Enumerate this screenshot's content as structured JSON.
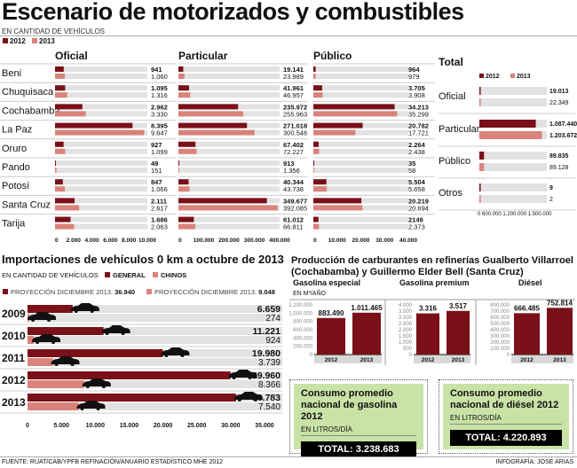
{
  "title": "Escenario de motorizados y combustibles",
  "subtitle": "EN CANTIDAD DE VEHÍCULOS",
  "legend": [
    "2012",
    "2013"
  ],
  "colors": {
    "y2012": "#7a1018",
    "y2013": "#d9837b",
    "track": "#e2e2e2",
    "green": "#c9e2a6"
  },
  "chart_data": [
    {
      "type": "bar",
      "title": "Oficial",
      "categories": [
        "Beni",
        "Chuquisaca",
        "Cochabamba",
        "La Paz",
        "Oruro",
        "Pando",
        "Potosí",
        "Santa Cruz",
        "Tarija"
      ],
      "series": [
        {
          "name": "2012",
          "values": [
            941,
            1095,
            2962,
            8395,
            927,
            49,
            847,
            2111,
            1686
          ],
          "labels": [
            "941",
            "1.095",
            "2.962",
            "8.395",
            "927",
            "49",
            "847",
            "2.111",
            "1.686"
          ]
        },
        {
          "name": "2013",
          "values": [
            1060,
            1316,
            3330,
            9647,
            1099,
            151,
            1066,
            2617,
            2063
          ],
          "labels": [
            "1.060",
            "1.316",
            "3.330",
            "9.647",
            "1.099",
            "151",
            "1.066",
            "2.617",
            "2.063"
          ]
        }
      ],
      "xlim": [
        0,
        10000
      ],
      "ticks": [
        "0",
        "2.000",
        "4.000",
        "6.000",
        "8.000",
        "10.000"
      ],
      "tickvals": [
        0,
        2000,
        4000,
        6000,
        8000,
        10000
      ]
    },
    {
      "type": "bar",
      "title": "Particular",
      "series": [
        {
          "name": "2012",
          "values": [
            19141,
            41961,
            235972,
            271018,
            67402,
            913,
            40344,
            349677,
            61012
          ],
          "labels": [
            "19.141",
            "41.961",
            "235.972",
            "271.018",
            "67.402",
            "913",
            "40.344",
            "349.677",
            "61.012"
          ]
        },
        {
          "name": "2013",
          "values": [
            23989,
            46957,
            255963,
            300546,
            72227,
            1356,
            43738,
            392085,
            66811
          ],
          "labels": [
            "23.989",
            "46.957",
            "255.963",
            "300.546",
            "72.227",
            "1.356",
            "43.738",
            "392.085",
            "66.811"
          ]
        }
      ],
      "xlim": [
        0,
        400000
      ],
      "ticks": [
        "0",
        "100.000",
        "200.000",
        "300.000",
        "400.000"
      ],
      "tickvals": [
        0,
        100000,
        200000,
        300000,
        400000
      ]
    },
    {
      "type": "bar",
      "title": "Público",
      "series": [
        {
          "name": "2012",
          "values": [
            964,
            3705,
            34213,
            20782,
            2264,
            35,
            5504,
            20219,
            2149
          ],
          "labels": [
            "964",
            "3.705",
            "34.213",
            "20.782",
            "2.264",
            "35",
            "5.504",
            "20.219",
            "2149"
          ]
        },
        {
          "name": "2013",
          "values": [
            979,
            3908,
            35299,
            17721,
            2438,
            58,
            5658,
            20694,
            2373
          ],
          "labels": [
            "979",
            "3.908",
            "35.299",
            "17.721",
            "2.438",
            "58",
            "5.658",
            "20.694",
            "2.373"
          ]
        }
      ],
      "xlim": [
        0,
        40000
      ],
      "ticks": [
        "0",
        "10.000",
        "20.000",
        "30.000",
        "40.000"
      ],
      "tickvals": [
        0,
        10000,
        20000,
        30000,
        40000
      ]
    },
    {
      "type": "bar",
      "title": "Total",
      "categories": [
        "Oficial",
        "Particular",
        "Público",
        "Otros"
      ],
      "series": [
        {
          "name": "2012",
          "values": [
            19013,
            1087440,
            89835,
            9
          ],
          "labels": [
            "19.013",
            "1.087.440",
            "89.835",
            "9"
          ]
        },
        {
          "name": "2013",
          "values": [
            22349,
            1203672,
            89128,
            2
          ],
          "labels": [
            "22.349",
            "1.203.672",
            "89.128",
            "2"
          ]
        }
      ],
      "xlim": [
        0,
        1500000
      ],
      "ticks": [
        "0",
        "600.000",
        "1.200.000",
        "1.500.000"
      ]
    },
    {
      "type": "bar",
      "title": "Importaciones de vehículos 0 km a octubre de 2013",
      "subtitle": "EN CANTIDAD DE VEHÍCULOS",
      "categories": [
        "2009",
        "2010",
        "2011",
        "2012",
        "2013"
      ],
      "series": [
        {
          "name": "GENERAL",
          "values": [
            6659,
            11221,
            19980,
            29960,
            30783
          ],
          "labels": [
            "6.659",
            "11.221",
            "19.980",
            "29.960",
            "30.783"
          ]
        },
        {
          "name": "CHINOS",
          "values": [
            274,
            924,
            3739,
            8366,
            7540
          ],
          "labels": [
            "274",
            "924",
            "3.739",
            "8.366",
            "7.540"
          ]
        }
      ],
      "projections": [
        {
          "label": "PROYECCIÓN DICIEMBRE 2013:",
          "value": "36.940"
        },
        {
          "label": "PROYECCIÓN DICIEMBRE 2013:",
          "value": "9.048"
        }
      ],
      "xlim": [
        0,
        35000
      ],
      "ticks": [
        "0",
        "5.000",
        "10.000",
        "15.000",
        "20.000",
        "25.000",
        "30.000",
        "35.000"
      ],
      "tickvals": [
        0,
        5000,
        10000,
        15000,
        20000,
        25000,
        30000,
        35000
      ]
    },
    {
      "type": "bar",
      "title": "Producción de carburantes en refinerías Gualberto Villarroel (Cochabamba) y Guillermo Elder Bell (Santa Cruz)",
      "unit": "EN M³/AÑO",
      "panels": [
        {
          "title": "Gasolina especial",
          "categories": [
            "2012",
            "2013"
          ],
          "values": [
            883490,
            1011465
          ],
          "labels": [
            "883.490",
            "1.011.465"
          ],
          "ylim": [
            0,
            1200000
          ],
          "ticks": [
            "1.200.000",
            "1.000.000",
            "800.000",
            "600.000",
            "400.000",
            "200.000",
            "0"
          ]
        },
        {
          "title": "Gasolina premium",
          "categories": [
            "2012",
            "2013"
          ],
          "values": [
            3316,
            3517
          ],
          "labels": [
            "3.316",
            "3.517"
          ],
          "ylim": [
            0,
            4000
          ],
          "ticks": [
            "4.000",
            "3.500",
            "3.000",
            "2.500",
            "2.000",
            "1.500",
            "1.000",
            "500",
            "0"
          ]
        },
        {
          "title": "Diésel",
          "categories": [
            "2012",
            "2013"
          ],
          "values": [
            666485,
            752814
          ],
          "labels": [
            "666.485",
            "752.814"
          ],
          "ylim": [
            0,
            800000
          ],
          "ticks": [
            "800.000",
            "700.000",
            "600.000",
            "500.000",
            "400.000",
            "300.000",
            "200.000",
            "100.000",
            "0"
          ]
        }
      ]
    }
  ],
  "consumo": [
    {
      "title": "Consumo promedio nacional de gasolina 2012",
      "unit": "EN LITROS/DÍA",
      "total": "TOTAL: 3.238.683"
    },
    {
      "title": "Consumo promedio nacional de diésel 2012",
      "unit": "EN LITROS/DÍA",
      "total": "TOTAL: 4.220.893"
    }
  ],
  "footer": {
    "source": "FUENTE: RUAT/CAB/YPFB REFINACIÓN/ANUARIO ESTADÍSTICO MHE 2012",
    "credit": "INFOGRAFÍA: JOSÉ ARIAS"
  }
}
